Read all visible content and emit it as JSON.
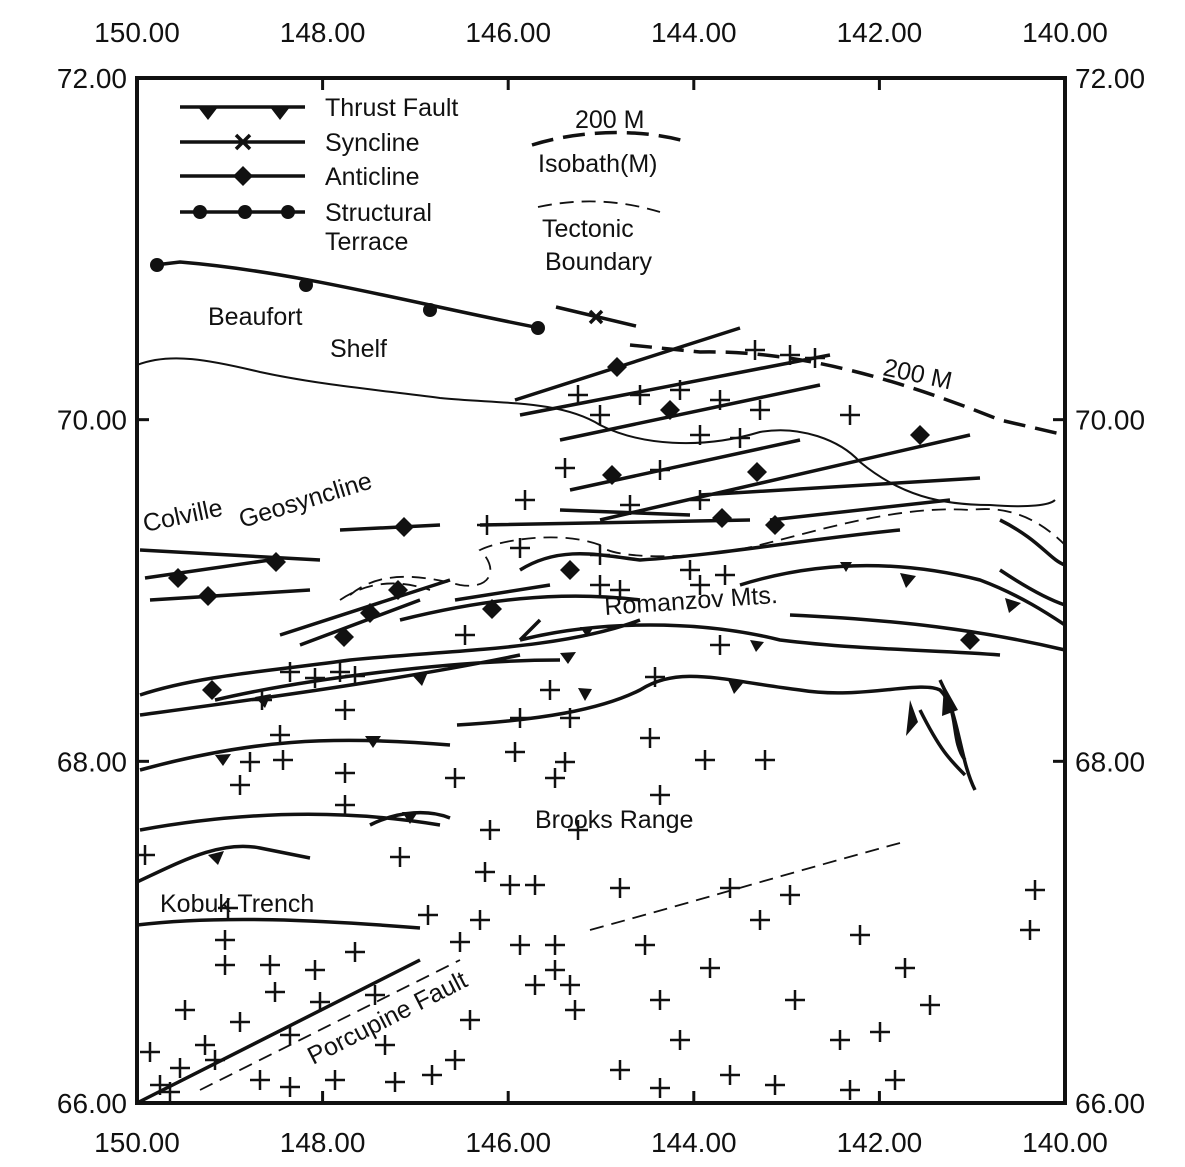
{
  "axes": {
    "x_ticks": [
      {
        "value": 150,
        "label": "150.00"
      },
      {
        "value": 148,
        "label": "148.00"
      },
      {
        "value": 146,
        "label": "146.00"
      },
      {
        "value": 144,
        "label": "144.00"
      },
      {
        "value": 142,
        "label": "142.00"
      },
      {
        "value": 140,
        "label": "140.00"
      }
    ],
    "y_ticks": [
      {
        "value": 72,
        "label": "72.00"
      },
      {
        "value": 70,
        "label": "70.00"
      },
      {
        "value": 68,
        "label": "68.00"
      },
      {
        "value": 66,
        "label": "66.00"
      }
    ]
  },
  "legend": {
    "thrust_fault": "Thrust Fault",
    "syncline": "Syncline",
    "anticline": "Anticline",
    "structural_terrace": [
      "Structural",
      "Terrace"
    ],
    "isobath_depth": "200 M",
    "isobath": "Isobath(M)",
    "tectonic_boundary": [
      "Tectonic",
      "Boundary"
    ]
  },
  "labels": {
    "beaufort_shelf": [
      "Beaufort",
      "Shelf"
    ],
    "isobath_200": "200 M",
    "colville": "Colville",
    "geosyncline": "Geosyncline",
    "romanzov": "Romanzov Mts.",
    "brooks_range": "Brooks Range",
    "kobuk_trench": "Kobuk Trench",
    "porcupine_fault": "Porcupine Fault"
  }
}
